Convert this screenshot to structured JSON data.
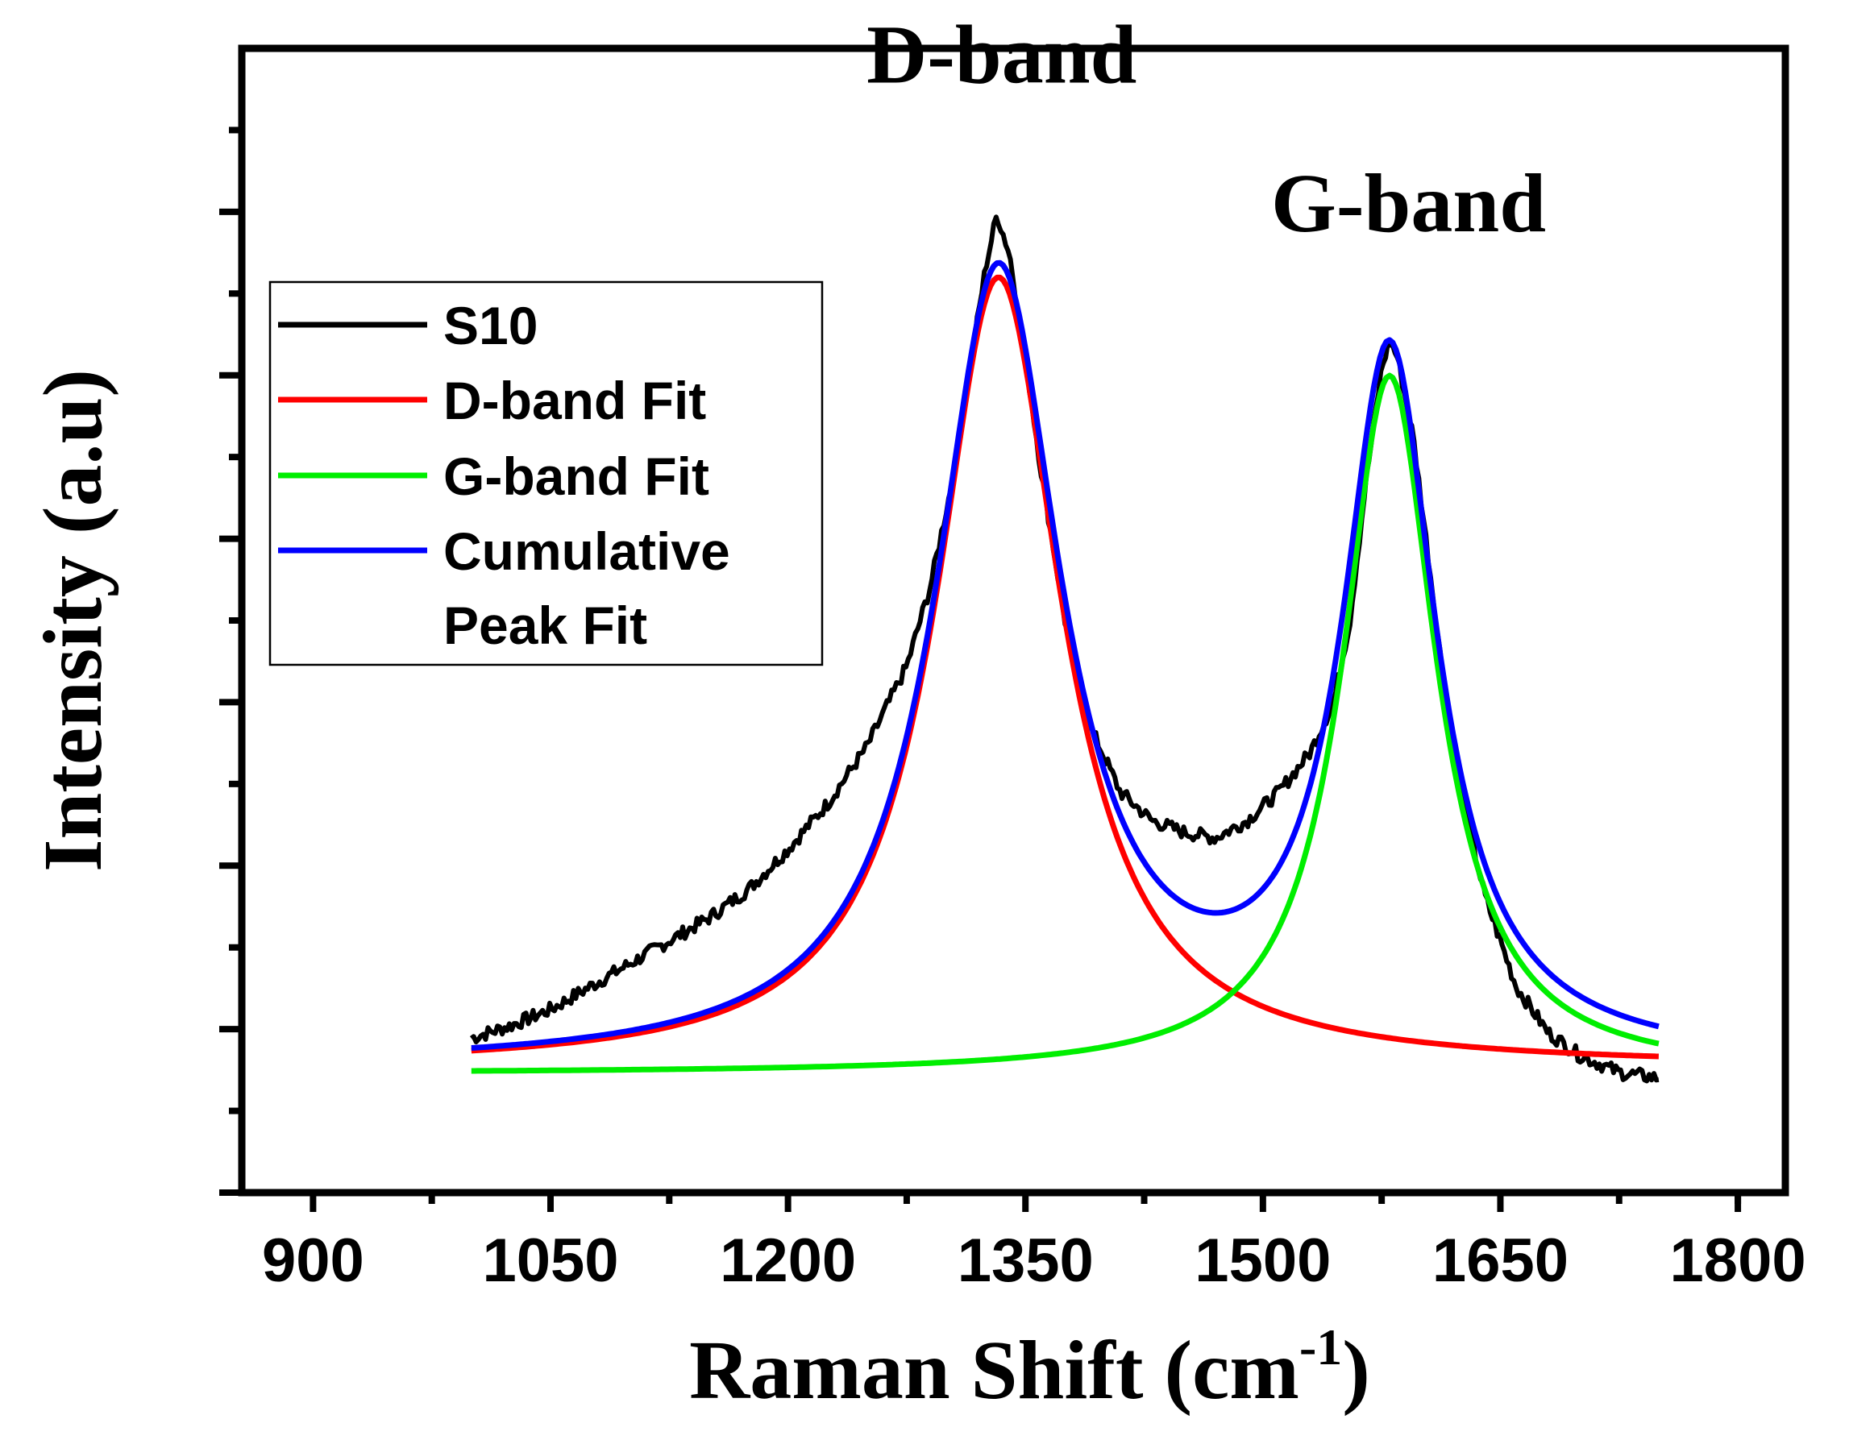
{
  "chart_data": {
    "type": "line",
    "title": "",
    "xlabel_main": "Raman Shift (cm",
    "xlabel_sup": "-1",
    "xlabel_close": ")",
    "ylabel": "Intensity (a.u)",
    "xlim": [
      855,
      1830
    ],
    "ylim": [
      0,
      1.0
    ],
    "x_ticks": [
      900,
      1050,
      1200,
      1350,
      1500,
      1650,
      1800
    ],
    "y_tick_count": 14,
    "annotations": [
      {
        "text": "D-band",
        "x": 1335,
        "y": 0.97
      },
      {
        "text": "G-band",
        "x": 1592,
        "y": 0.84
      }
    ],
    "legend": {
      "position": "top-left",
      "entries": [
        {
          "label": "S10",
          "color": "#000000"
        },
        {
          "label": "D-band Fit",
          "color": "#ff0000"
        },
        {
          "label": "G-band Fit",
          "color": "#00ee00"
        },
        {
          "label": "Cumulative",
          "label2": "Peak Fit",
          "color": "#0000ff"
        }
      ]
    },
    "series": [
      {
        "name": "S10",
        "color": "#000000",
        "x": [
          1000,
          1025,
          1050,
          1075,
          1100,
          1125,
          1150,
          1175,
          1200,
          1225,
          1250,
          1275,
          1290,
          1305,
          1315,
          1325,
          1332,
          1340,
          1350,
          1360,
          1375,
          1390,
          1410,
          1430,
          1450,
          1470,
          1490,
          1510,
          1530,
          1545,
          1555,
          1565,
          1575,
          1580,
          1585,
          1595,
          1605,
          1620,
          1640,
          1660,
          1680,
          1700,
          1725,
          1750
        ],
        "y": [
          0.135,
          0.146,
          0.16,
          0.18,
          0.2,
          0.22,
          0.24,
          0.265,
          0.3,
          0.34,
          0.39,
          0.46,
          0.53,
          0.63,
          0.72,
          0.81,
          0.855,
          0.82,
          0.73,
          0.63,
          0.5,
          0.41,
          0.35,
          0.325,
          0.315,
          0.31,
          0.325,
          0.35,
          0.385,
          0.43,
          0.5,
          0.62,
          0.72,
          0.745,
          0.73,
          0.66,
          0.55,
          0.38,
          0.26,
          0.18,
          0.14,
          0.12,
          0.105,
          0.1
        ]
      },
      {
        "name": "D-band Fit",
        "color": "#ff0000",
        "model": "lorentz",
        "params": {
          "baseline": 0.11,
          "amplitude": 0.69,
          "center": 1333,
          "hwhm": 48
        },
        "x_range": [
          1000,
          1750
        ]
      },
      {
        "name": "G-band Fit",
        "color": "#00ee00",
        "model": "lorentz",
        "params": {
          "baseline": 0.104,
          "amplitude": 0.61,
          "center": 1580,
          "hwhm": 36
        },
        "x_range": [
          1000,
          1750
        ]
      },
      {
        "name": "Cumulative Peak Fit",
        "color": "#0000ff",
        "model": "sum",
        "components": [
          "D-band Fit",
          "G-band Fit"
        ],
        "offset": -0.104,
        "x_range": [
          1000,
          1750
        ]
      }
    ]
  }
}
